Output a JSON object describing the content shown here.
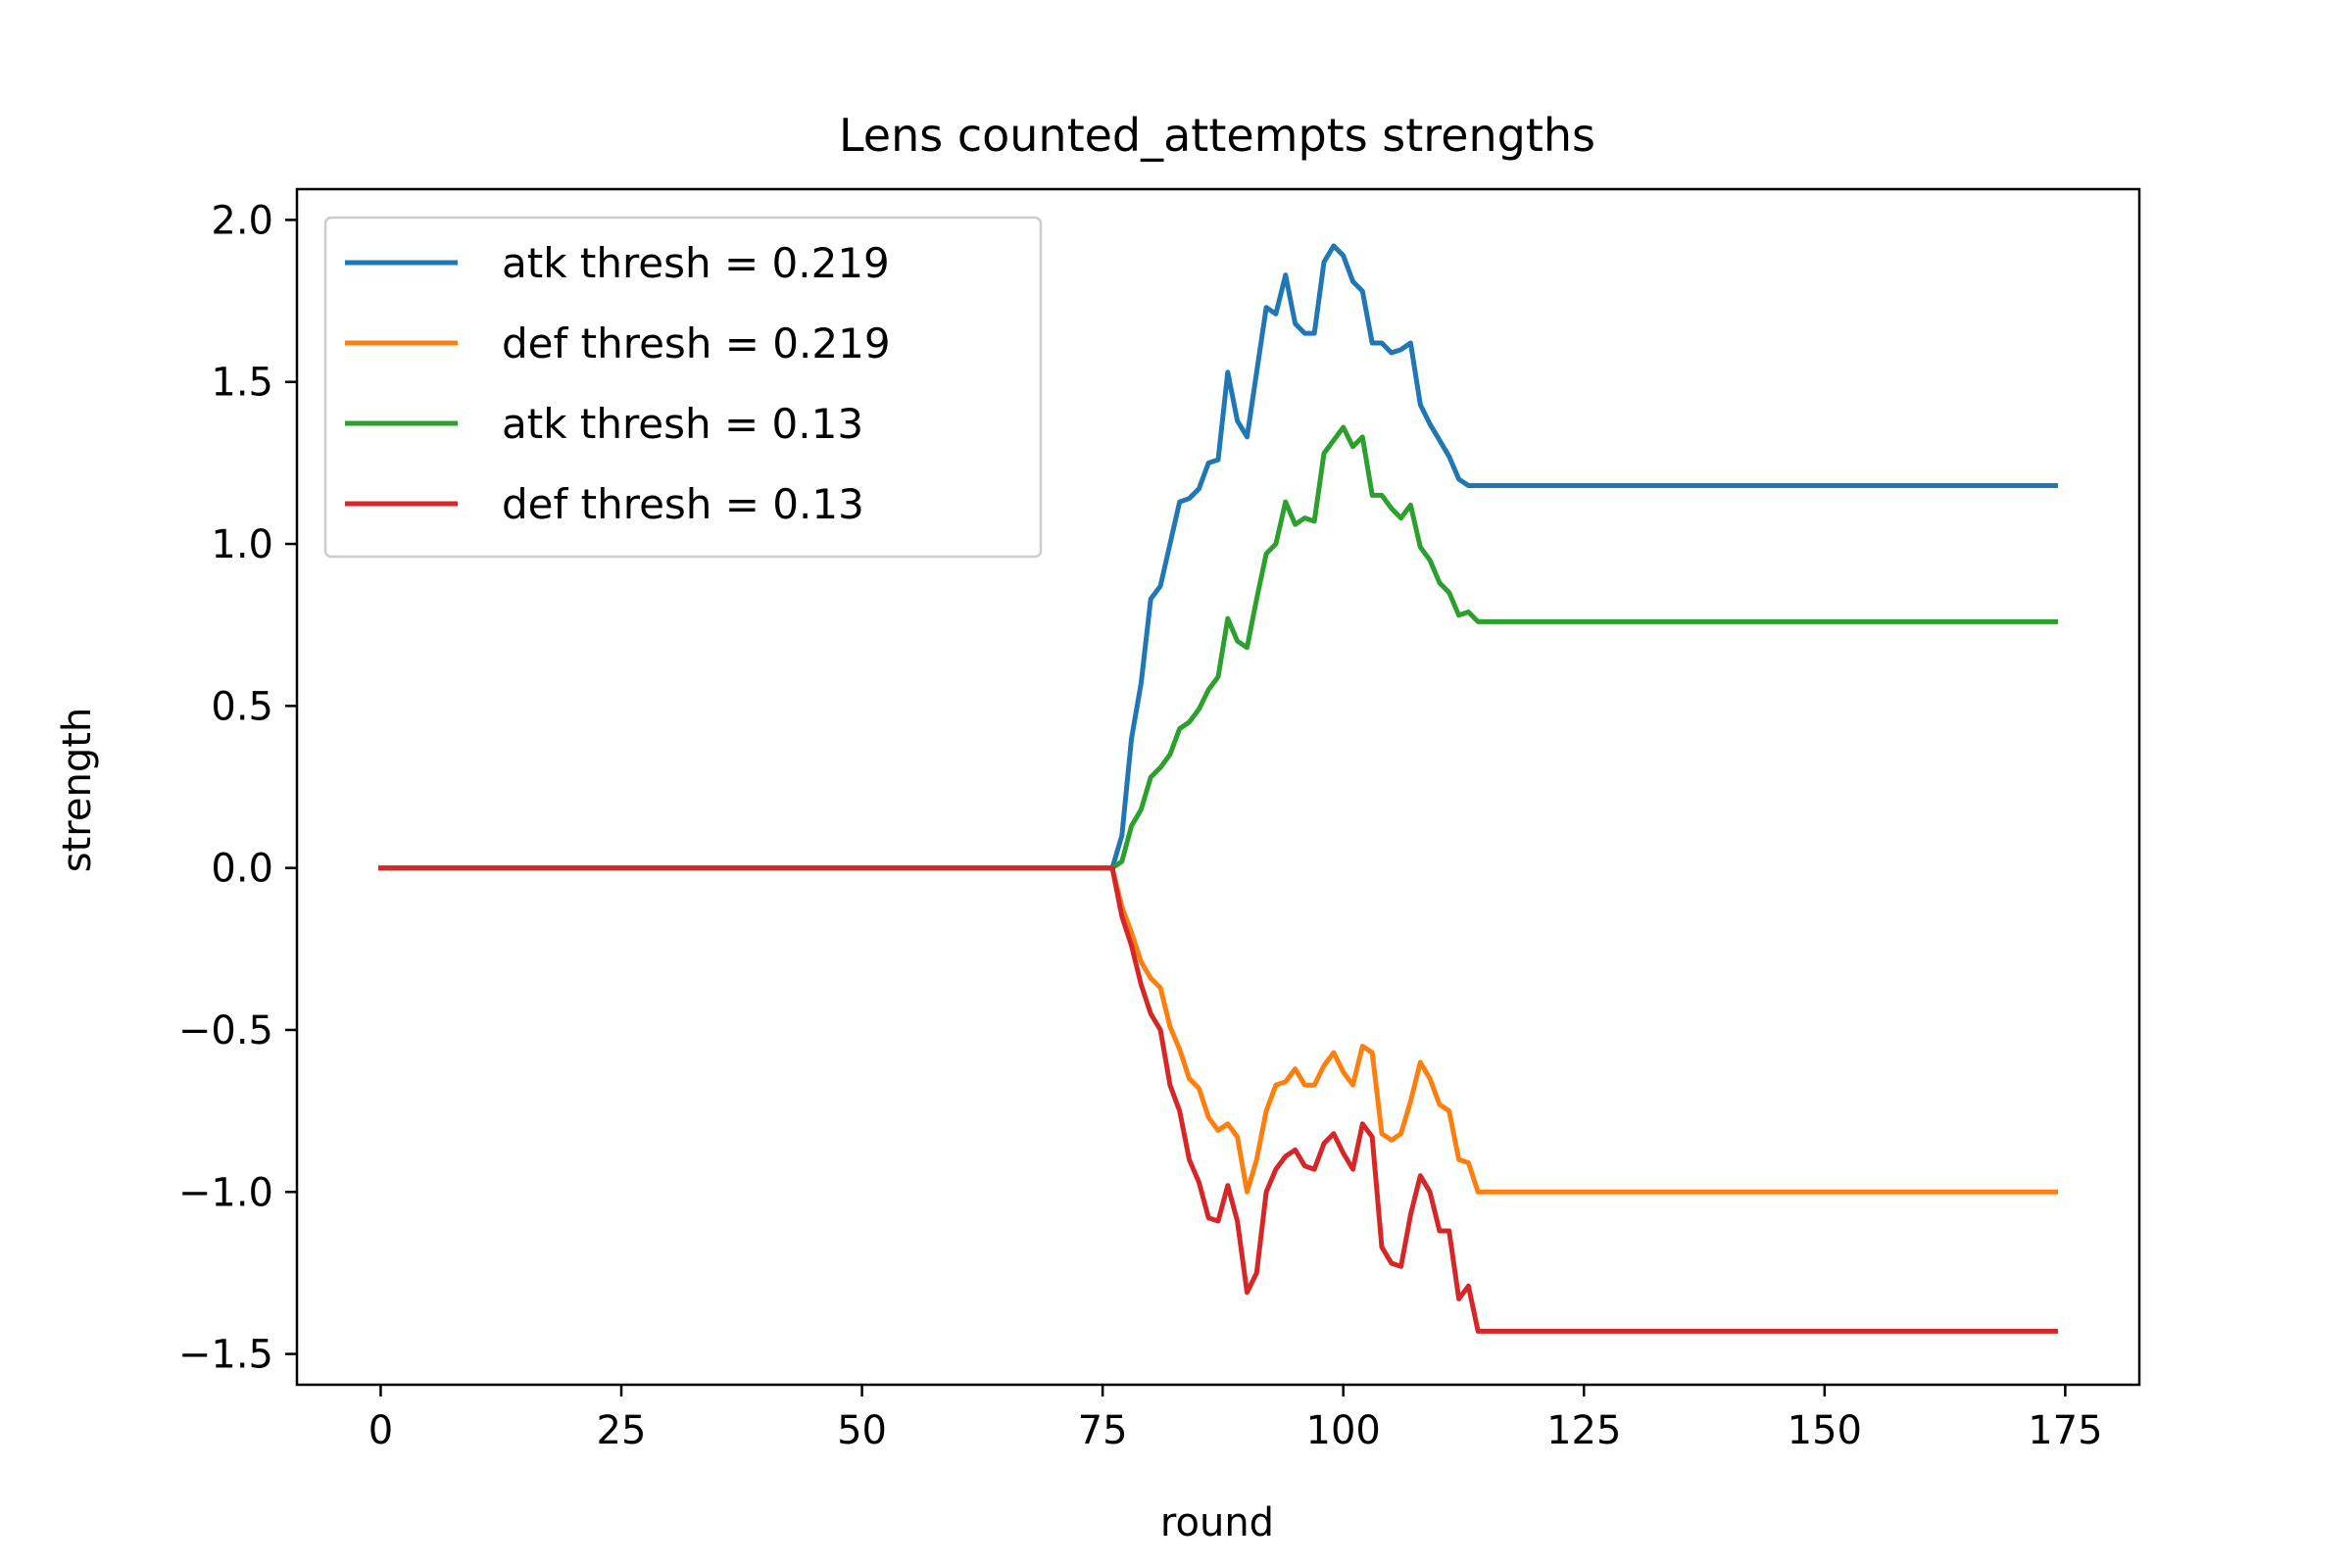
{
  "chart_data": {
    "type": "line",
    "title": "Lens counted_attempts strengths",
    "xlabel": "round",
    "ylabel": "strength",
    "xlim": [
      -8.7,
      182.7
    ],
    "ylim": [
      -1.595,
      2.095
    ],
    "xticks": [
      0,
      25,
      50,
      75,
      100,
      125,
      150,
      175
    ],
    "xtick_labels": [
      "0",
      "25",
      "50",
      "75",
      "100",
      "125",
      "150",
      "175"
    ],
    "yticks": [
      -1.5,
      -1.0,
      -0.5,
      0.0,
      0.5,
      1.0,
      1.5,
      2.0
    ],
    "ytick_labels": [
      "−1.5",
      "−1.0",
      "−0.5",
      "0.0",
      "0.5",
      "1.0",
      "1.5",
      "2.0"
    ],
    "grid": false,
    "legend_position": "top-left",
    "series": [
      {
        "name": "atk thresh = 0.219",
        "color": "#1f77b4",
        "x": [
          0,
          76,
          77,
          78,
          79,
          80,
          81,
          82,
          83,
          84,
          85,
          86,
          87,
          88,
          89,
          90,
          91,
          92,
          93,
          94,
          95,
          96,
          97,
          98,
          99,
          100,
          101,
          102,
          103,
          104,
          105,
          106,
          107,
          108,
          109,
          110,
          111,
          112,
          113,
          114,
          174
        ],
        "y": [
          0,
          0,
          0.1,
          0.4,
          0.57,
          0.83,
          0.87,
          1.0,
          1.13,
          1.14,
          1.17,
          1.25,
          1.26,
          1.53,
          1.38,
          1.33,
          1.53,
          1.73,
          1.71,
          1.83,
          1.68,
          1.65,
          1.65,
          1.87,
          1.92,
          1.89,
          1.81,
          1.78,
          1.62,
          1.62,
          1.59,
          1.6,
          1.62,
          1.43,
          1.37,
          1.32,
          1.27,
          1.2,
          1.18,
          1.18,
          1.18
        ]
      },
      {
        "name": "def thresh = 0.219",
        "color": "#ff7f0e",
        "x": [
          0,
          76,
          77,
          78,
          79,
          80,
          81,
          82,
          83,
          84,
          85,
          86,
          87,
          88,
          89,
          90,
          91,
          92,
          93,
          94,
          95,
          96,
          97,
          98,
          99,
          100,
          101,
          102,
          103,
          104,
          105,
          106,
          107,
          108,
          109,
          110,
          111,
          112,
          113,
          114,
          174
        ],
        "y": [
          0,
          0,
          -0.12,
          -0.2,
          -0.29,
          -0.34,
          -0.37,
          -0.49,
          -0.56,
          -0.65,
          -0.68,
          -0.77,
          -0.81,
          -0.79,
          -0.83,
          -1.0,
          -0.9,
          -0.75,
          -0.67,
          -0.66,
          -0.62,
          -0.67,
          -0.67,
          -0.61,
          -0.57,
          -0.63,
          -0.67,
          -0.55,
          -0.57,
          -0.82,
          -0.84,
          -0.82,
          -0.72,
          -0.6,
          -0.65,
          -0.73,
          -0.75,
          -0.9,
          -0.91,
          -1.0,
          -1.0
        ]
      },
      {
        "name": "atk thresh = 0.13",
        "color": "#2ca02c",
        "x": [
          0,
          76,
          77,
          78,
          79,
          80,
          81,
          82,
          83,
          84,
          85,
          86,
          87,
          88,
          89,
          90,
          91,
          92,
          93,
          94,
          95,
          96,
          97,
          98,
          99,
          100,
          101,
          102,
          103,
          104,
          105,
          106,
          107,
          108,
          109,
          110,
          111,
          112,
          113,
          114,
          174
        ],
        "y": [
          0,
          0,
          0.02,
          0.13,
          0.18,
          0.28,
          0.31,
          0.35,
          0.43,
          0.45,
          0.49,
          0.55,
          0.59,
          0.77,
          0.7,
          0.68,
          0.83,
          0.97,
          1.0,
          1.13,
          1.06,
          1.08,
          1.07,
          1.28,
          1.32,
          1.36,
          1.3,
          1.33,
          1.15,
          1.15,
          1.11,
          1.08,
          1.12,
          0.99,
          0.95,
          0.88,
          0.85,
          0.78,
          0.79,
          0.76,
          0.76
        ]
      },
      {
        "name": "def thresh = 0.13",
        "color": "#d62728",
        "x": [
          0,
          76,
          77,
          78,
          79,
          80,
          81,
          82,
          83,
          84,
          85,
          86,
          87,
          88,
          89,
          90,
          91,
          92,
          93,
          94,
          95,
          96,
          97,
          98,
          99,
          100,
          101,
          102,
          103,
          104,
          105,
          106,
          107,
          108,
          109,
          110,
          111,
          112,
          113,
          114,
          174
        ],
        "y": [
          0,
          0,
          -0.15,
          -0.24,
          -0.36,
          -0.45,
          -0.5,
          -0.67,
          -0.75,
          -0.9,
          -0.97,
          -1.08,
          -1.09,
          -0.98,
          -1.09,
          -1.31,
          -1.25,
          -1.0,
          -0.93,
          -0.89,
          -0.87,
          -0.92,
          -0.93,
          -0.85,
          -0.82,
          -0.88,
          -0.93,
          -0.79,
          -0.83,
          -1.17,
          -1.22,
          -1.23,
          -1.07,
          -0.95,
          -1.0,
          -1.12,
          -1.12,
          -1.33,
          -1.29,
          -1.43,
          -1.43
        ]
      }
    ]
  }
}
